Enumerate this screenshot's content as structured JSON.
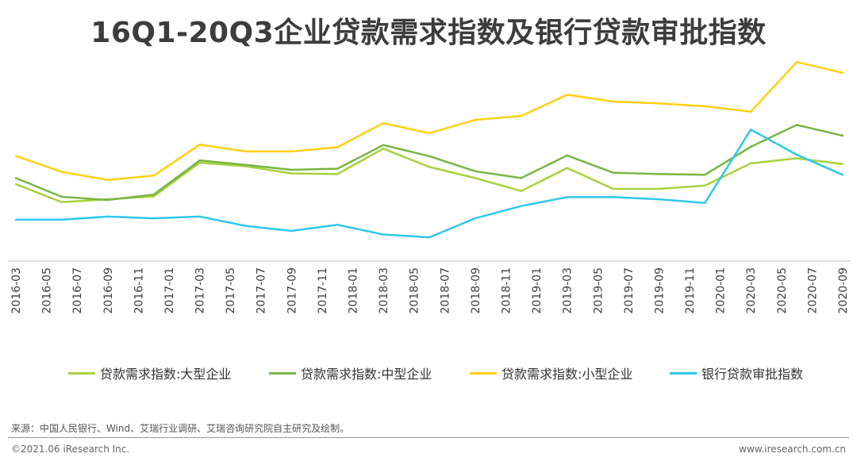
{
  "chart_data": {
    "type": "line",
    "title": "16Q1-20Q3企业贷款需求指数及银行贷款审批指数",
    "categories": [
      "2016-03",
      "2016-05",
      "2016-07",
      "2016-09",
      "2016-11",
      "2017-01",
      "2017-03",
      "2017-05",
      "2017-07",
      "2017-09",
      "2017-11",
      "2018-01",
      "2018-03",
      "2018-05",
      "2018-07",
      "2018-09",
      "2018-11",
      "2019-01",
      "2019-03",
      "2019-05",
      "2019-07",
      "2019-09",
      "2019-11",
      "2020-01",
      "2020-03",
      "2020-05",
      "2020-07",
      "2020-09"
    ],
    "x": [
      "2016-03",
      "2016-06",
      "2016-09",
      "2016-12",
      "2017-03",
      "2017-06",
      "2017-09",
      "2017-12",
      "2018-03",
      "2018-06",
      "2018-09",
      "2018-12",
      "2019-03",
      "2019-06",
      "2019-09",
      "2019-12",
      "2020-03",
      "2020-06",
      "2020-09"
    ],
    "ylim": [
      40,
      95
    ],
    "grid": false,
    "legend_position": "bottom",
    "series": [
      {
        "name": "贷款需求指数:大型企业",
        "color": "#a9d03e",
        "values": [
          61.4,
          56.4,
          57.2,
          58.0,
          67.4,
          66.4,
          64.4,
          64.2,
          71.3,
          66.2,
          63.1,
          59.5,
          65.9,
          60.1,
          60.1,
          61.0,
          67.2,
          68.6,
          67.0
        ]
      },
      {
        "name": "贷款需求指数:中型企业",
        "color": "#79b547",
        "values": [
          63.1,
          57.9,
          57.0,
          58.5,
          68.0,
          66.8,
          65.4,
          65.7,
          72.3,
          69.2,
          65.0,
          63.1,
          69.4,
          64.6,
          64.2,
          64.0,
          71.8,
          77.9,
          74.9
        ]
      },
      {
        "name": "贷款需求指数:小型企业",
        "color": "#ffd012",
        "values": [
          69.3,
          64.8,
          62.6,
          63.8,
          72.4,
          70.5,
          70.5,
          71.7,
          78.4,
          75.6,
          79.3,
          80.4,
          86.3,
          84.4,
          83.9,
          83.1,
          81.6,
          95.4,
          92.4
        ]
      },
      {
        "name": "银行贷款审批指数",
        "color": "#2fc7ed",
        "values": [
          51.5,
          51.5,
          52.4,
          51.9,
          52.4,
          49.8,
          48.4,
          50.1,
          47.4,
          46.6,
          51.9,
          55.3,
          57.8,
          57.8,
          57.2,
          56.2,
          76.6,
          69.6,
          64.0
        ]
      }
    ]
  },
  "footer": {
    "source": "来源：中国人民银行、Wind、艾瑞行业调研、艾瑞咨询研究院自主研究及绘制。",
    "copyright": "©2021.06 iResearch Inc.",
    "website": "www.iresearch.com.cn"
  }
}
